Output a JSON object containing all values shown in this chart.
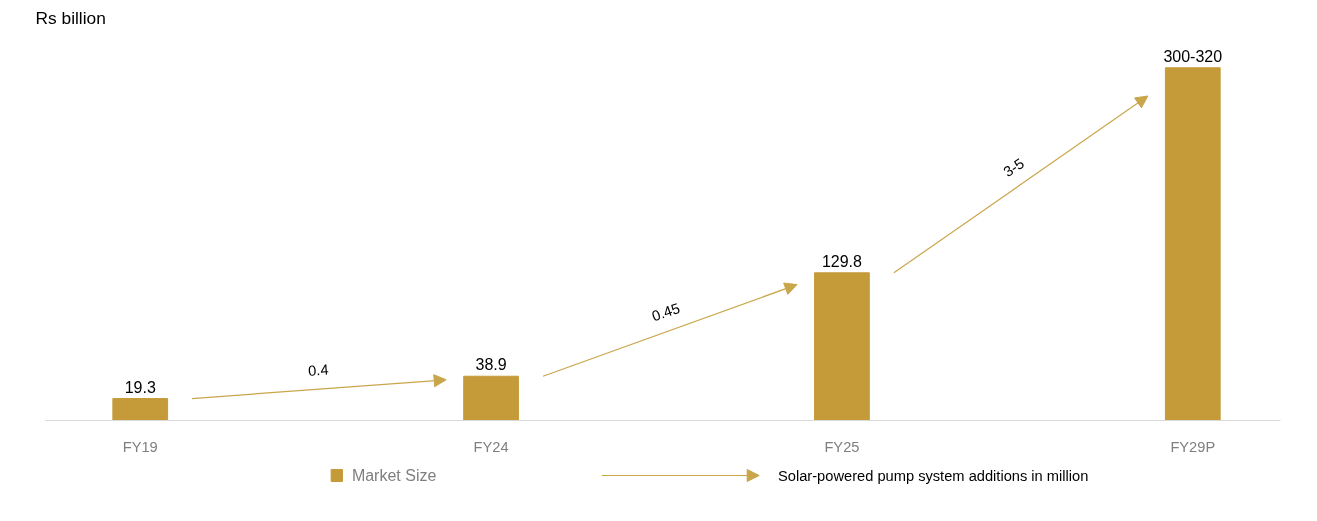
{
  "chart_data": {
    "type": "bar",
    "ylabel": "Rs billion",
    "categories": [
      "FY19",
      "FY24",
      "FY25",
      "FY29P"
    ],
    "series": [
      {
        "name": "Market Size",
        "color": "#c59b3a",
        "values": [
          19.3,
          38.9,
          129.8,
          310
        ],
        "value_labels": [
          "19.3",
          "38.9",
          "129.8",
          "300-320"
        ]
      }
    ],
    "annotations": [
      "0.4",
      "0.45",
      "3-5",
      "Solar-powered pump system additions in million"
    ],
    "legend": "bottom",
    "grid": false
  }
}
